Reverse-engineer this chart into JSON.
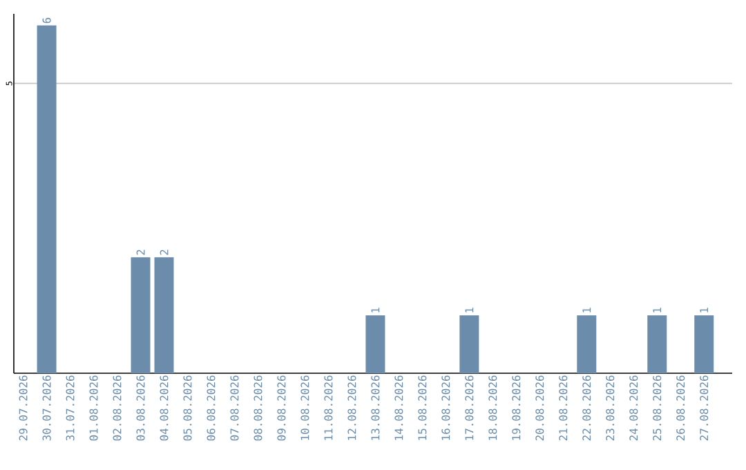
{
  "chart_data": {
    "type": "bar",
    "categories": [
      "29.07.2026",
      "30.07.2026",
      "31.07.2026",
      "01.08.2026",
      "02.08.2026",
      "03.08.2026",
      "04.08.2026",
      "05.08.2026",
      "06.08.2026",
      "07.08.2026",
      "08.08.2026",
      "09.08.2026",
      "10.08.2026",
      "11.08.2026",
      "12.08.2026",
      "13.08.2026",
      "14.08.2026",
      "15.08.2026",
      "16.08.2026",
      "17.08.2026",
      "18.08.2026",
      "19.08.2026",
      "20.08.2026",
      "21.08.2026",
      "22.08.2026",
      "23.08.2026",
      "24.08.2026",
      "25.08.2026",
      "26.08.2026",
      "27.08.2026"
    ],
    "values": [
      0,
      6,
      0,
      0,
      0,
      2,
      2,
      0,
      0,
      0,
      0,
      0,
      0,
      0,
      0,
      1,
      0,
      0,
      0,
      1,
      0,
      0,
      0,
      0,
      1,
      0,
      0,
      1,
      0,
      1
    ],
    "value_labels": [
      null,
      "6",
      null,
      null,
      null,
      "2",
      "2",
      null,
      null,
      null,
      null,
      null,
      null,
      null,
      null,
      "1",
      null,
      null,
      null,
      "1",
      null,
      null,
      null,
      null,
      "1",
      null,
      null,
      "1",
      null,
      "1"
    ],
    "color": "#6b8cab",
    "ylim": [
      0,
      6.2
    ],
    "yticks": [
      5
    ],
    "grid": "y"
  }
}
